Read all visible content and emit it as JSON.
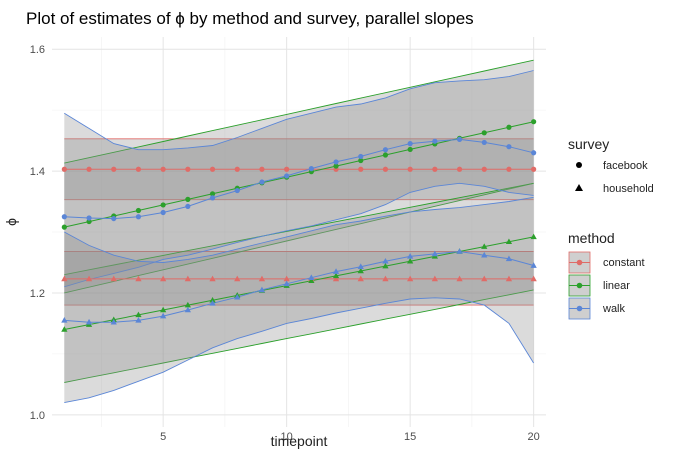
{
  "chart_data": {
    "type": "line",
    "title": "Plot of estimates of ϕ by method and survey, parallel slopes",
    "xlabel": "timepoint",
    "ylabel": "ϕ",
    "xlim": [
      0.5,
      20.5
    ],
    "ylim": [
      0.98,
      1.62
    ],
    "x_ticks": [
      5,
      10,
      15,
      20
    ],
    "y_ticks": [
      1.0,
      1.2,
      1.4,
      1.6
    ],
    "grid": true,
    "legend_position": "right",
    "colors": {
      "constant": "#E06B67",
      "linear": "#2CA02C",
      "walk": "#5B86D6",
      "ribbon_fill": "#8f8f8f"
    },
    "legend": {
      "survey": {
        "title": "survey",
        "entries": [
          {
            "label": "facebook",
            "shape": "circle"
          },
          {
            "label": "household",
            "shape": "triangle"
          }
        ]
      },
      "method": {
        "title": "method",
        "entries": [
          {
            "label": "constant",
            "key": "constant"
          },
          {
            "label": "linear",
            "key": "linear"
          },
          {
            "label": "walk",
            "key": "walk"
          }
        ]
      }
    },
    "series": [
      {
        "method": "constant",
        "survey": "facebook",
        "shape": "circle",
        "x": [
          1,
          20
        ],
        "y": [
          1.403,
          1.403
        ],
        "lower": [
          1.353,
          1.353
        ],
        "upper": [
          1.453,
          1.453
        ]
      },
      {
        "method": "constant",
        "survey": "household",
        "shape": "triangle",
        "x": [
          1,
          20
        ],
        "y": [
          1.223,
          1.223
        ],
        "lower": [
          1.18,
          1.18
        ],
        "upper": [
          1.268,
          1.268
        ]
      },
      {
        "method": "linear",
        "survey": "facebook",
        "shape": "circle",
        "x": [
          1,
          20
        ],
        "y": [
          1.308,
          1.481
        ],
        "lower": [
          1.2,
          1.38
        ],
        "upper": [
          1.413,
          1.582
        ]
      },
      {
        "method": "linear",
        "survey": "household",
        "shape": "triangle",
        "x": [
          1,
          20
        ],
        "y": [
          1.14,
          1.292
        ],
        "lower": [
          1.053,
          1.205
        ],
        "upper": [
          1.23,
          1.38
        ]
      },
      {
        "method": "walk",
        "survey": "facebook",
        "shape": "circle",
        "x": [
          1,
          2,
          3,
          4,
          5,
          6,
          7,
          8,
          9,
          10,
          11,
          12,
          13,
          14,
          15,
          16,
          17,
          18,
          19,
          20
        ],
        "y": [
          1.325,
          1.323,
          1.322,
          1.325,
          1.332,
          1.342,
          1.356,
          1.368,
          1.382,
          1.392,
          1.404,
          1.415,
          1.424,
          1.435,
          1.445,
          1.449,
          1.452,
          1.447,
          1.44,
          1.43
        ],
        "lower": [
          1.21,
          1.222,
          1.232,
          1.242,
          1.255,
          1.262,
          1.272,
          1.283,
          1.293,
          1.302,
          1.31,
          1.32,
          1.33,
          1.345,
          1.365,
          1.375,
          1.38,
          1.375,
          1.365,
          1.36
        ],
        "upper": [
          1.495,
          1.47,
          1.445,
          1.435,
          1.435,
          1.438,
          1.442,
          1.455,
          1.47,
          1.485,
          1.495,
          1.505,
          1.51,
          1.52,
          1.535,
          1.545,
          1.548,
          1.55,
          1.555,
          1.565
        ]
      },
      {
        "method": "walk",
        "survey": "household",
        "shape": "triangle",
        "x": [
          1,
          2,
          3,
          4,
          5,
          6,
          7,
          8,
          9,
          10,
          11,
          12,
          13,
          14,
          15,
          16,
          17,
          18,
          19,
          20
        ],
        "y": [
          1.155,
          1.152,
          1.152,
          1.155,
          1.162,
          1.172,
          1.183,
          1.193,
          1.205,
          1.215,
          1.225,
          1.235,
          1.243,
          1.252,
          1.26,
          1.264,
          1.268,
          1.262,
          1.256,
          1.245
        ],
        "lower": [
          1.02,
          1.028,
          1.04,
          1.055,
          1.07,
          1.09,
          1.11,
          1.125,
          1.137,
          1.15,
          1.158,
          1.167,
          1.175,
          1.183,
          1.19,
          1.192,
          1.19,
          1.18,
          1.15,
          1.085
        ],
        "upper": [
          1.3,
          1.278,
          1.262,
          1.252,
          1.25,
          1.255,
          1.262,
          1.272,
          1.282,
          1.292,
          1.302,
          1.312,
          1.318,
          1.326,
          1.333,
          1.337,
          1.34,
          1.345,
          1.35,
          1.357
        ]
      }
    ]
  }
}
